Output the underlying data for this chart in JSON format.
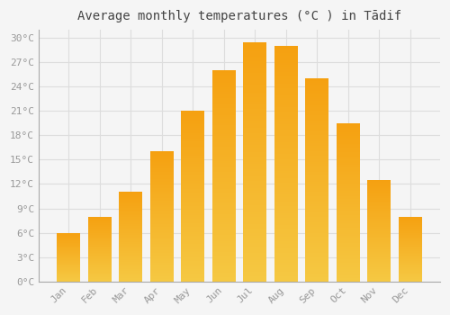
{
  "title": "Average monthly temperatures (°C ) in Tādif",
  "months": [
    "Jan",
    "Feb",
    "Mar",
    "Apr",
    "May",
    "Jun",
    "Jul",
    "Aug",
    "Sep",
    "Oct",
    "Nov",
    "Dec"
  ],
  "values": [
    6.0,
    8.0,
    11.0,
    16.0,
    21.0,
    26.0,
    29.5,
    29.0,
    25.0,
    19.5,
    12.5,
    8.0
  ],
  "bar_color_top": "#F5A623",
  "bar_color_bottom": "#F5C842",
  "background_color": "#f5f5f5",
  "plot_bg_color": "#f5f5f5",
  "grid_color": "#dddddd",
  "ylim": [
    0,
    31
  ],
  "yticks": [
    0,
    3,
    6,
    9,
    12,
    15,
    18,
    21,
    24,
    27,
    30
  ],
  "title_fontsize": 10,
  "tick_fontsize": 8,
  "font_family": "monospace",
  "tick_color": "#999999",
  "title_color": "#444444"
}
